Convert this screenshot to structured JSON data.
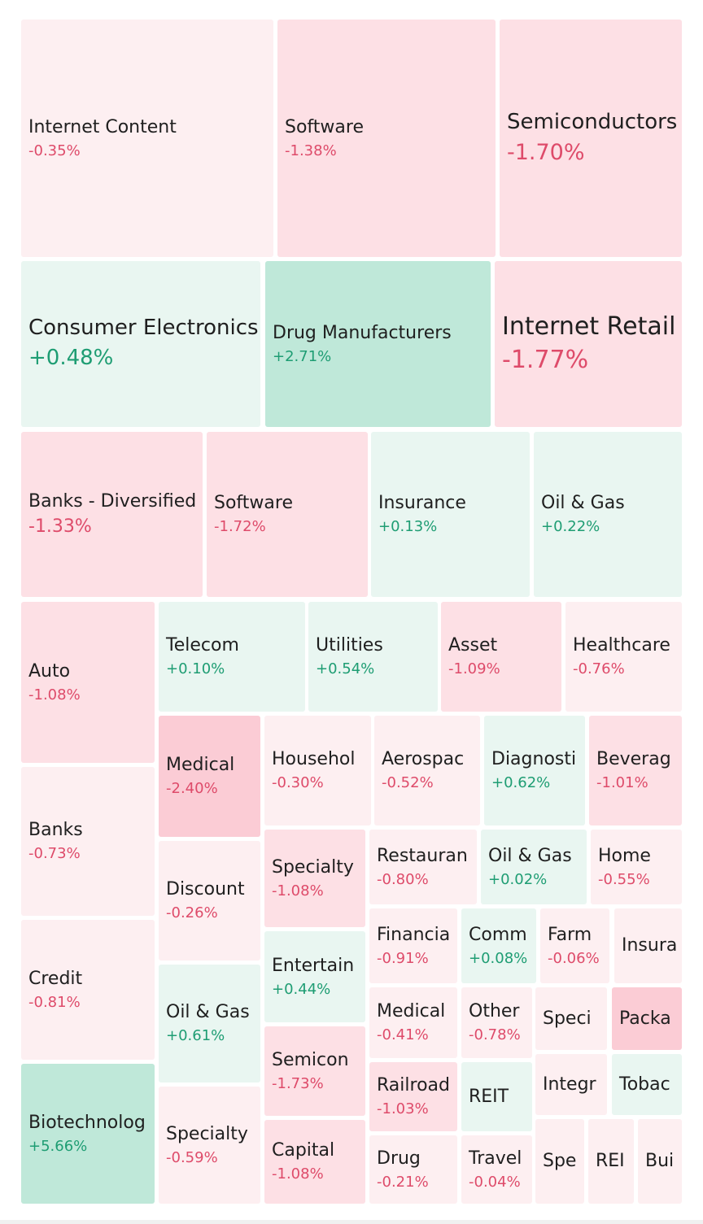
{
  "chart_data": {
    "type": "treemap",
    "colors": {
      "neg_light": "#fdeff1",
      "neg_mid": "#fde0e5",
      "neg_strong": "#fbccd5",
      "pos_light": "#e9f6f1",
      "pos_strong": "#bfe8d9",
      "neg_text": "#de4b6a",
      "pos_text": "#1e9d73"
    },
    "tiles": [
      {
        "label": "Internet Content",
        "change": "-0.35%",
        "value": -0.35
      },
      {
        "label": "Software",
        "change": "-1.38%",
        "value": -1.38
      },
      {
        "label": "Semiconductors",
        "change": "-1.70%",
        "value": -1.7
      },
      {
        "label": "Consumer Electronics",
        "change": "+0.48%",
        "value": 0.48
      },
      {
        "label": "Drug Manufacturers",
        "change": "+2.71%",
        "value": 2.71
      },
      {
        "label": "Internet Retail",
        "change": "-1.77%",
        "value": -1.77
      },
      {
        "label": "Banks - Diversified",
        "change": "-1.33%",
        "value": -1.33
      },
      {
        "label": "Software",
        "change": "-1.72%",
        "value": -1.72
      },
      {
        "label": "Insurance",
        "change": "+0.13%",
        "value": 0.13
      },
      {
        "label": "Oil & Gas",
        "change": "+0.22%",
        "value": 0.22
      },
      {
        "label": "Auto",
        "change": "-1.08%",
        "value": -1.08
      },
      {
        "label": "Telecom",
        "change": "+0.10%",
        "value": 0.1
      },
      {
        "label": "Utilities",
        "change": "+0.54%",
        "value": 0.54
      },
      {
        "label": "Asset",
        "change": "-1.09%",
        "value": -1.09
      },
      {
        "label": "Healthcare",
        "change": "-0.76%",
        "value": -0.76
      },
      {
        "label": "Medical",
        "change": "-2.40%",
        "value": -2.4
      },
      {
        "label": "Househol",
        "change": "-0.30%",
        "value": -0.3
      },
      {
        "label": "Aerospac",
        "change": "-0.52%",
        "value": -0.52
      },
      {
        "label": "Diagnosti",
        "change": "+0.62%",
        "value": 0.62
      },
      {
        "label": "Beverag",
        "change": "-1.01%",
        "value": -1.01
      },
      {
        "label": "Banks",
        "change": "-0.73%",
        "value": -0.73
      },
      {
        "label": "Discount",
        "change": "-0.26%",
        "value": -0.26
      },
      {
        "label": "Specialty",
        "change": "-1.08%",
        "value": -1.08
      },
      {
        "label": "Restauran",
        "change": "-0.80%",
        "value": -0.8
      },
      {
        "label": "Oil & Gas",
        "change": "+0.02%",
        "value": 0.02
      },
      {
        "label": "Home",
        "change": "-0.55%",
        "value": -0.55
      },
      {
        "label": "Entertain",
        "change": "+0.44%",
        "value": 0.44
      },
      {
        "label": "Financia",
        "change": "-0.91%",
        "value": -0.91
      },
      {
        "label": "Comm",
        "change": "+0.08%",
        "value": 0.08
      },
      {
        "label": "Farm",
        "change": "-0.06%",
        "value": -0.06
      },
      {
        "label": "Insura",
        "change": "",
        "value": null
      },
      {
        "label": "Credit",
        "change": "-0.81%",
        "value": -0.81
      },
      {
        "label": "Oil & Gas",
        "change": "+0.61%",
        "value": 0.61
      },
      {
        "label": "Semicon",
        "change": "-1.73%",
        "value": -1.73
      },
      {
        "label": "Medical",
        "change": "-0.41%",
        "value": -0.41
      },
      {
        "label": "Other",
        "change": "-0.78%",
        "value": -0.78
      },
      {
        "label": "Speci",
        "change": "",
        "value": null
      },
      {
        "label": "Packa",
        "change": "",
        "value": null
      },
      {
        "label": "Railroad",
        "change": "-1.03%",
        "value": -1.03
      },
      {
        "label": "REIT",
        "change": "",
        "value": null
      },
      {
        "label": "Integr",
        "change": "",
        "value": null
      },
      {
        "label": "Tobac",
        "change": "",
        "value": null
      },
      {
        "label": "Biotechnolog",
        "change": "+5.66%",
        "value": 5.66
      },
      {
        "label": "Specialty",
        "change": "-0.59%",
        "value": -0.59
      },
      {
        "label": "Capital",
        "change": "-1.08%",
        "value": -1.08
      },
      {
        "label": "Drug",
        "change": "-0.21%",
        "value": -0.21
      },
      {
        "label": "Travel",
        "change": "-0.04%",
        "value": -0.04
      },
      {
        "label": "Spe",
        "change": "",
        "value": null
      },
      {
        "label": "REI",
        "change": "",
        "value": null
      },
      {
        "label": "Bui",
        "change": "",
        "value": null
      }
    ]
  }
}
